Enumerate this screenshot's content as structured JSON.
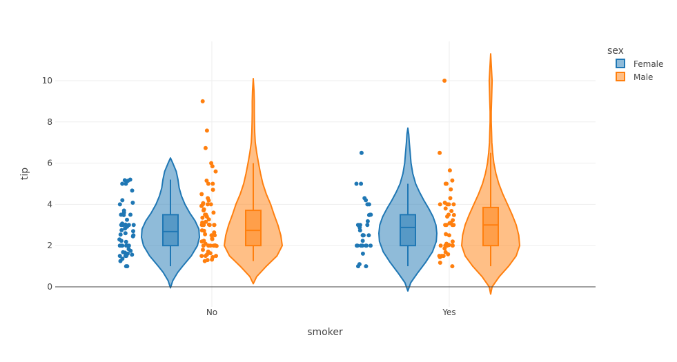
{
  "chart_data": {
    "type": "violin",
    "xlabel": "smoker",
    "ylabel": "tip",
    "categories": [
      "No",
      "Yes"
    ],
    "yticks": [
      0,
      2,
      4,
      6,
      8,
      10
    ],
    "ylim": [
      -1.1,
      11.8
    ],
    "grid": true,
    "legend": {
      "title": "sex",
      "placement": "top-right",
      "items": [
        "Female",
        "Male"
      ]
    },
    "series": [
      {
        "name": "Female",
        "color": "#1f77b4",
        "groups": [
          {
            "category": "No",
            "box": {
              "q1": 2.0,
              "median": 2.68,
              "q3": 3.5,
              "whisker_low": 1.0,
              "whisker_high": 5.2
            },
            "kde_range": [
              -0.05,
              6.25
            ],
            "kde": [
              [
                -0.05,
                0.0
              ],
              [
                0.3,
                0.08
              ],
              [
                0.7,
                0.25
              ],
              [
                1.0,
                0.42
              ],
              [
                1.5,
                0.72
              ],
              [
                2.0,
                0.93
              ],
              [
                2.4,
                1.0
              ],
              [
                2.8,
                0.98
              ],
              [
                3.2,
                0.85
              ],
              [
                3.6,
                0.66
              ],
              [
                4.0,
                0.5
              ],
              [
                4.4,
                0.38
              ],
              [
                4.8,
                0.3
              ],
              [
                5.2,
                0.26
              ],
              [
                5.6,
                0.2
              ],
              [
                6.0,
                0.08
              ],
              [
                6.25,
                0.0
              ]
            ],
            "points": [
              1.0,
              1.0,
              1.25,
              1.36,
              1.5,
              1.5,
              1.5,
              1.56,
              1.61,
              1.66,
              1.68,
              1.75,
              1.83,
              2.0,
              2.0,
              2.0,
              2.0,
              2.0,
              2.0,
              2.18,
              2.23,
              2.3,
              2.45,
              2.5,
              2.54,
              2.6,
              2.7,
              2.75,
              2.83,
              2.92,
              3.0,
              3.0,
              3.0,
              3.0,
              3.02,
              3.07,
              3.25,
              3.48,
              3.5,
              3.5,
              3.6,
              3.7,
              4.0,
              4.08,
              4.2,
              4.67,
              5.0,
              5.0,
              5.14,
              5.17,
              5.2
            ]
          },
          {
            "category": "Yes",
            "box": {
              "q1": 2.0,
              "median": 2.88,
              "q3": 3.5,
              "whisker_low": 1.0,
              "whisker_high": 5.0
            },
            "kde_range": [
              -0.2,
              7.7
            ],
            "kde": [
              [
                -0.2,
                0.0
              ],
              [
                0.2,
                0.1
              ],
              [
                0.7,
                0.35
              ],
              [
                1.2,
                0.62
              ],
              [
                1.7,
                0.85
              ],
              [
                2.2,
                0.98
              ],
              [
                2.6,
                1.0
              ],
              [
                3.0,
                0.97
              ],
              [
                3.4,
                0.87
              ],
              [
                3.8,
                0.72
              ],
              [
                4.2,
                0.55
              ],
              [
                4.6,
                0.4
              ],
              [
                5.0,
                0.27
              ],
              [
                5.5,
                0.17
              ],
              [
                6.0,
                0.11
              ],
              [
                6.5,
                0.08
              ],
              [
                7.0,
                0.05
              ],
              [
                7.4,
                0.03
              ],
              [
                7.7,
                0.0
              ]
            ],
            "points": [
              1.0,
              1.0,
              1.1,
              1.61,
              2.0,
              2.0,
              2.0,
              2.0,
              2.0,
              2.0,
              2.0,
              2.23,
              2.5,
              2.5,
              2.5,
              2.5,
              2.5,
              2.74,
              2.88,
              3.0,
              3.0,
              3.0,
              3.18,
              3.48,
              3.5,
              3.5,
              4.0,
              4.0,
              4.2,
              4.3,
              5.0,
              5.0,
              6.5
            ]
          }
        ]
      },
      {
        "name": "Male",
        "color": "#ff7f0e",
        "groups": [
          {
            "category": "No",
            "box": {
              "q1": 2.0,
              "median": 2.74,
              "q3": 3.71,
              "whisker_low": 1.25,
              "whisker_high": 6.0
            },
            "kde_range": [
              0.15,
              10.1
            ],
            "kde": [
              [
                0.15,
                0.0
              ],
              [
                0.5,
                0.12
              ],
              [
                1.0,
                0.45
              ],
              [
                1.5,
                0.82
              ],
              [
                2.0,
                1.0
              ],
              [
                2.5,
                0.95
              ],
              [
                3.0,
                0.85
              ],
              [
                3.5,
                0.72
              ],
              [
                4.0,
                0.6
              ],
              [
                4.5,
                0.45
              ],
              [
                5.0,
                0.33
              ],
              [
                5.5,
                0.25
              ],
              [
                6.0,
                0.18
              ],
              [
                6.5,
                0.12
              ],
              [
                7.0,
                0.07
              ],
              [
                7.5,
                0.05
              ],
              [
                8.0,
                0.04
              ],
              [
                8.5,
                0.035
              ],
              [
                9.0,
                0.035
              ],
              [
                9.5,
                0.025
              ],
              [
                10.1,
                0.0
              ]
            ],
            "points": [
              1.25,
              1.3,
              1.32,
              1.44,
              1.5,
              1.5,
              1.5,
              1.57,
              1.63,
              1.71,
              1.8,
              1.98,
              2.0,
              2.0,
              2.0,
              2.0,
              2.0,
              2.0,
              2.01,
              2.09,
              2.2,
              2.23,
              2.31,
              2.34,
              2.5,
              2.5,
              2.55,
              2.64,
              2.72,
              2.74,
              3.0,
              3.0,
              3.0,
              3.0,
              3.0,
              3.0,
              3.02,
              3.12,
              3.15,
              3.27,
              3.35,
              3.4,
              3.5,
              3.5,
              3.6,
              3.71,
              3.76,
              3.92,
              4.0,
              4.0,
              4.0,
              4.06,
              4.19,
              4.3,
              4.5,
              4.71,
              5.0,
              5.0,
              5.15,
              5.6,
              5.85,
              6.0,
              6.73,
              7.58,
              9.0
            ]
          },
          {
            "category": "Yes",
            "box": {
              "q1": 2.0,
              "median": 3.0,
              "q3": 3.85,
              "whisker_low": 1.0,
              "whisker_high": 6.5
            },
            "kde_range": [
              -0.35,
              11.3
            ],
            "kde": [
              [
                -0.35,
                0.0
              ],
              [
                0.0,
                0.05
              ],
              [
                0.5,
                0.3
              ],
              [
                1.0,
                0.62
              ],
              [
                1.5,
                0.88
              ],
              [
                2.0,
                1.0
              ],
              [
                2.5,
                0.97
              ],
              [
                3.0,
                0.88
              ],
              [
                3.5,
                0.74
              ],
              [
                4.0,
                0.58
              ],
              [
                4.5,
                0.42
              ],
              [
                5.0,
                0.28
              ],
              [
                5.5,
                0.18
              ],
              [
                6.0,
                0.11
              ],
              [
                6.5,
                0.07
              ],
              [
                7.0,
                0.04
              ],
              [
                7.5,
                0.03
              ],
              [
                8.0,
                0.02
              ],
              [
                8.5,
                0.02
              ],
              [
                9.0,
                0.03
              ],
              [
                9.5,
                0.04
              ],
              [
                10.0,
                0.05
              ],
              [
                10.5,
                0.03
              ],
              [
                11.3,
                0.0
              ]
            ],
            "points": [
              1.0,
              1.17,
              1.44,
              1.5,
              1.5,
              1.5,
              1.58,
              1.68,
              1.86,
              2.0,
              2.0,
              2.0,
              2.0,
              2.0,
              2.01,
              2.03,
              2.09,
              2.2,
              2.5,
              2.56,
              3.0,
              3.0,
              3.0,
              3.0,
              3.09,
              3.11,
              3.23,
              3.41,
              3.48,
              3.5,
              3.68,
              3.8,
              4.0,
              4.0,
              4.0,
              4.0,
              4.08,
              4.3,
              4.73,
              5.0,
              5.0,
              5.16,
              5.65,
              6.5,
              10.0
            ]
          }
        ]
      }
    ]
  }
}
